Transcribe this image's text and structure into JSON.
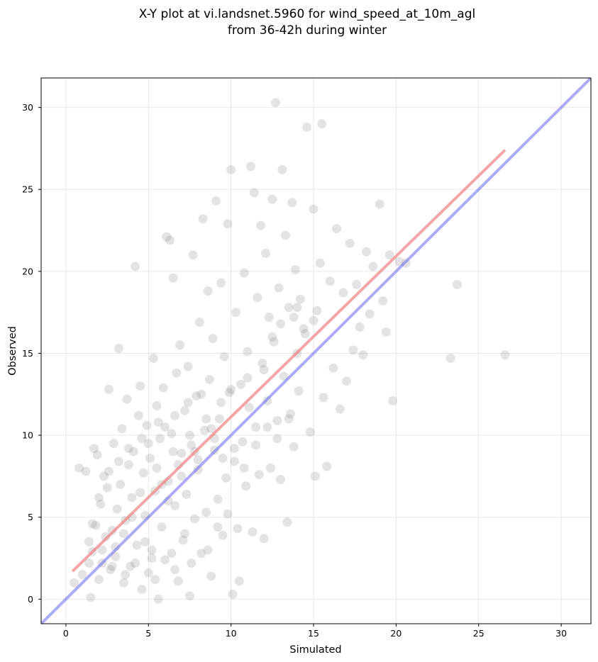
{
  "chart_data": {
    "type": "scatter",
    "title_line1": "X-Y plot at vi.landsnet.5960 for wind_speed_at_10m_agl",
    "title_line2": "from 36-42h during winter",
    "xlabel": "Simulated",
    "ylabel": "Observed",
    "xlim": [
      -1.5,
      31.8
    ],
    "ylim": [
      -1.5,
      31.8
    ],
    "xticks": [
      0,
      5,
      10,
      15,
      20,
      25,
      30
    ],
    "yticks": [
      0,
      5,
      10,
      15,
      20,
      25,
      30
    ],
    "grid": true,
    "point_color": "#808080",
    "identity_line": {
      "color": "#6666ee",
      "from": [
        -1.5,
        -1.5
      ],
      "to": [
        31.8,
        31.8
      ]
    },
    "fit_line": {
      "color": "#f08080",
      "from": [
        0.4,
        1.7
      ],
      "to": [
        26.6,
        27.4
      ]
    },
    "points": [
      [
        0.5,
        1.0
      ],
      [
        0.8,
        8.0
      ],
      [
        1.0,
        1.5
      ],
      [
        1.2,
        7.8
      ],
      [
        1.4,
        3.5
      ],
      [
        1.5,
        0.1
      ],
      [
        1.6,
        2.9
      ],
      [
        1.7,
        9.2
      ],
      [
        1.8,
        4.5
      ],
      [
        1.9,
        8.8
      ],
      [
        2.0,
        1.2
      ],
      [
        2.1,
        5.8
      ],
      [
        2.2,
        2.2
      ],
      [
        2.3,
        7.5
      ],
      [
        2.4,
        3.8
      ],
      [
        2.5,
        6.8
      ],
      [
        2.6,
        12.8
      ],
      [
        2.7,
        1.8
      ],
      [
        2.8,
        4.2
      ],
      [
        2.9,
        9.5
      ],
      [
        3.0,
        2.6
      ],
      [
        3.1,
        5.5
      ],
      [
        3.2,
        15.3
      ],
      [
        3.3,
        7.0
      ],
      [
        3.4,
        10.4
      ],
      [
        3.5,
        1.0
      ],
      [
        3.6,
        4.8
      ],
      [
        3.7,
        12.2
      ],
      [
        3.8,
        8.2
      ],
      [
        3.9,
        2.0
      ],
      [
        4.0,
        6.2
      ],
      [
        4.1,
        9.0
      ],
      [
        4.2,
        20.3
      ],
      [
        4.3,
        3.3
      ],
      [
        4.4,
        11.2
      ],
      [
        4.5,
        13.0
      ],
      [
        4.6,
        0.6
      ],
      [
        4.7,
        7.7
      ],
      [
        4.8,
        5.1
      ],
      [
        4.9,
        10.6
      ],
      [
        5.0,
        1.6
      ],
      [
        5.1,
        8.6
      ],
      [
        5.2,
        3.0
      ],
      [
        5.3,
        14.7
      ],
      [
        5.4,
        6.6
      ],
      [
        5.5,
        11.8
      ],
      [
        5.6,
        0.0
      ],
      [
        5.7,
        9.8
      ],
      [
        5.8,
        4.4
      ],
      [
        5.9,
        12.9
      ],
      [
        6.0,
        2.4
      ],
      [
        6.1,
        22.1
      ],
      [
        6.2,
        7.2
      ],
      [
        6.3,
        21.9
      ],
      [
        6.4,
        10.1
      ],
      [
        6.5,
        19.6
      ],
      [
        6.6,
        5.7
      ],
      [
        6.7,
        13.8
      ],
      [
        6.8,
        1.1
      ],
      [
        6.9,
        15.5
      ],
      [
        7.0,
        8.9
      ],
      [
        7.1,
        3.6
      ],
      [
        7.2,
        11.5
      ],
      [
        7.3,
        6.4
      ],
      [
        7.4,
        14.2
      ],
      [
        7.5,
        0.2
      ],
      [
        7.6,
        9.4
      ],
      [
        7.7,
        21.0
      ],
      [
        7.8,
        4.9
      ],
      [
        7.9,
        12.4
      ],
      [
        8.0,
        7.9
      ],
      [
        8.1,
        16.9
      ],
      [
        8.2,
        2.8
      ],
      [
        8.3,
        23.2
      ],
      [
        8.4,
        10.3
      ],
      [
        8.5,
        5.3
      ],
      [
        8.6,
        18.8
      ],
      [
        8.7,
        13.4
      ],
      [
        8.8,
        1.4
      ],
      [
        8.9,
        15.9
      ],
      [
        9.0,
        9.1
      ],
      [
        9.1,
        24.3
      ],
      [
        9.2,
        6.1
      ],
      [
        9.3,
        11.0
      ],
      [
        9.4,
        19.3
      ],
      [
        9.5,
        3.9
      ],
      [
        9.6,
        14.8
      ],
      [
        9.7,
        7.4
      ],
      [
        9.8,
        22.9
      ],
      [
        9.9,
        12.6
      ],
      [
        10.0,
        26.2
      ],
      [
        10.1,
        0.3
      ],
      [
        10.2,
        8.4
      ],
      [
        10.3,
        17.5
      ],
      [
        10.4,
        4.3
      ],
      [
        10.5,
        1.1
      ],
      [
        10.6,
        13.1
      ],
      [
        10.7,
        9.6
      ],
      [
        10.8,
        19.9
      ],
      [
        10.9,
        6.9
      ],
      [
        11.0,
        15.1
      ],
      [
        11.1,
        11.7
      ],
      [
        11.2,
        26.4
      ],
      [
        11.3,
        4.1
      ],
      [
        11.4,
        24.8
      ],
      [
        11.5,
        10.5
      ],
      [
        11.6,
        18.4
      ],
      [
        11.7,
        7.6
      ],
      [
        11.8,
        22.8
      ],
      [
        11.9,
        14.4
      ],
      [
        12.0,
        3.7
      ],
      [
        12.1,
        21.1
      ],
      [
        12.2,
        12.1
      ],
      [
        12.3,
        17.2
      ],
      [
        12.4,
        8.0
      ],
      [
        12.5,
        24.4
      ],
      [
        12.6,
        15.7
      ],
      [
        12.7,
        30.3
      ],
      [
        12.8,
        10.9
      ],
      [
        12.9,
        19.0
      ],
      [
        13.0,
        7.3
      ],
      [
        13.1,
        26.2
      ],
      [
        13.2,
        13.6
      ],
      [
        13.3,
        22.2
      ],
      [
        13.4,
        4.7
      ],
      [
        13.5,
        17.8
      ],
      [
        13.6,
        11.3
      ],
      [
        13.7,
        24.2
      ],
      [
        13.8,
        9.3
      ],
      [
        13.9,
        20.1
      ],
      [
        14.0,
        15.0
      ],
      [
        14.1,
        12.7
      ],
      [
        14.2,
        18.3
      ],
      [
        14.4,
        16.5
      ],
      [
        14.6,
        28.8
      ],
      [
        14.8,
        10.2
      ],
      [
        15.0,
        23.8
      ],
      [
        15.1,
        7.5
      ],
      [
        15.2,
        17.6
      ],
      [
        15.4,
        20.5
      ],
      [
        15.5,
        29.0
      ],
      [
        15.6,
        12.3
      ],
      [
        15.8,
        8.1
      ],
      [
        16.0,
        19.4
      ],
      [
        16.2,
        14.1
      ],
      [
        16.4,
        22.6
      ],
      [
        16.6,
        11.6
      ],
      [
        16.8,
        18.7
      ],
      [
        17.0,
        13.3
      ],
      [
        17.2,
        21.7
      ],
      [
        17.4,
        15.2
      ],
      [
        17.6,
        19.2
      ],
      [
        17.8,
        16.6
      ],
      [
        18.0,
        14.9
      ],
      [
        18.2,
        21.2
      ],
      [
        18.4,
        17.4
      ],
      [
        18.6,
        20.3
      ],
      [
        19.0,
        24.1
      ],
      [
        19.2,
        18.2
      ],
      [
        19.4,
        16.3
      ],
      [
        19.6,
        21.0
      ],
      [
        19.8,
        12.1
      ],
      [
        20.2,
        20.6
      ],
      [
        20.6,
        20.5
      ],
      [
        23.3,
        14.7
      ],
      [
        23.7,
        19.2
      ],
      [
        26.6,
        14.9
      ],
      [
        5.0,
        9.5
      ],
      [
        5.5,
        8.0
      ],
      [
        6.0,
        10.5
      ],
      [
        6.5,
        9.0
      ],
      [
        7.0,
        7.5
      ],
      [
        7.5,
        10.0
      ],
      [
        8.0,
        8.5
      ],
      [
        8.5,
        11.0
      ],
      [
        9.0,
        9.8
      ],
      [
        6.2,
        6.0
      ],
      [
        5.8,
        7.0
      ],
      [
        4.5,
        6.5
      ],
      [
        4.0,
        5.0
      ],
      [
        3.5,
        4.0
      ],
      [
        3.0,
        3.2
      ],
      [
        2.8,
        2.0
      ],
      [
        4.8,
        3.5
      ],
      [
        5.2,
        2.5
      ],
      [
        6.4,
        2.8
      ],
      [
        7.2,
        4.0
      ],
      [
        6.8,
        8.2
      ],
      [
        7.8,
        9.0
      ],
      [
        8.8,
        10.4
      ],
      [
        9.5,
        8.6
      ],
      [
        10.2,
        9.2
      ],
      [
        10.8,
        8.0
      ],
      [
        11.5,
        9.4
      ],
      [
        12.2,
        10.5
      ],
      [
        12.8,
        9.8
      ],
      [
        13.5,
        11.0
      ],
      [
        12.5,
        16.0
      ],
      [
        13.0,
        16.8
      ],
      [
        13.8,
        17.2
      ],
      [
        14.5,
        16.2
      ],
      [
        15.0,
        17.0
      ],
      [
        14.0,
        17.8
      ],
      [
        12.0,
        14.0
      ],
      [
        11.0,
        13.5
      ],
      [
        10.0,
        12.8
      ],
      [
        9.4,
        12.0
      ],
      [
        8.2,
        12.5
      ],
      [
        7.4,
        12.0
      ],
      [
        6.6,
        11.2
      ],
      [
        5.6,
        10.8
      ],
      [
        4.6,
        9.8
      ],
      [
        3.8,
        9.2
      ],
      [
        3.2,
        8.4
      ],
      [
        2.6,
        7.8
      ],
      [
        2.0,
        6.2
      ],
      [
        1.6,
        4.6
      ],
      [
        1.4,
        2.2
      ],
      [
        2.2,
        3.0
      ],
      [
        3.6,
        1.5
      ],
      [
        4.2,
        2.2
      ],
      [
        5.4,
        1.2
      ],
      [
        6.6,
        1.8
      ],
      [
        7.6,
        2.2
      ],
      [
        8.6,
        3.0
      ],
      [
        9.2,
        4.4
      ],
      [
        9.8,
        5.2
      ]
    ]
  }
}
